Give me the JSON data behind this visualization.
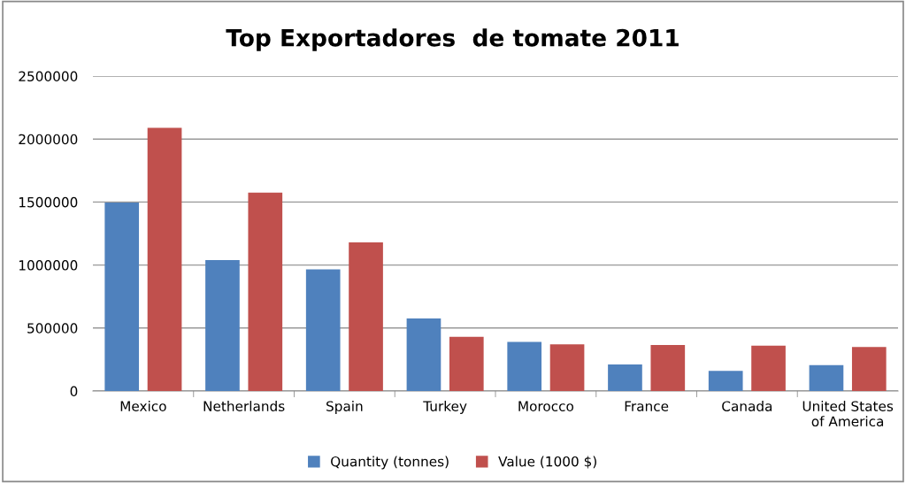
{
  "chart_data": {
    "type": "bar",
    "title": "Top Exportadores  de tomate 2011",
    "categories": [
      "Mexico",
      "Netherlands",
      "Spain",
      "Turkey",
      "Morocco",
      "France",
      "Canada",
      "United States\nof America"
    ],
    "series": [
      {
        "name": "Quantity (tonnes)",
        "color": "#4f81bd",
        "values": [
          1495000,
          1040000,
          965000,
          575000,
          390000,
          210000,
          160000,
          205000
        ]
      },
      {
        "name": "Value (1000 $)",
        "color": "#c0504d",
        "values": [
          2090000,
          1575000,
          1180000,
          430000,
          370000,
          365000,
          360000,
          350000
        ]
      }
    ],
    "ylim": [
      0,
      2500000
    ],
    "yticks": [
      0,
      500000,
      1000000,
      1500000,
      2000000,
      2500000
    ],
    "grid": "y",
    "legend": "bottom"
  }
}
